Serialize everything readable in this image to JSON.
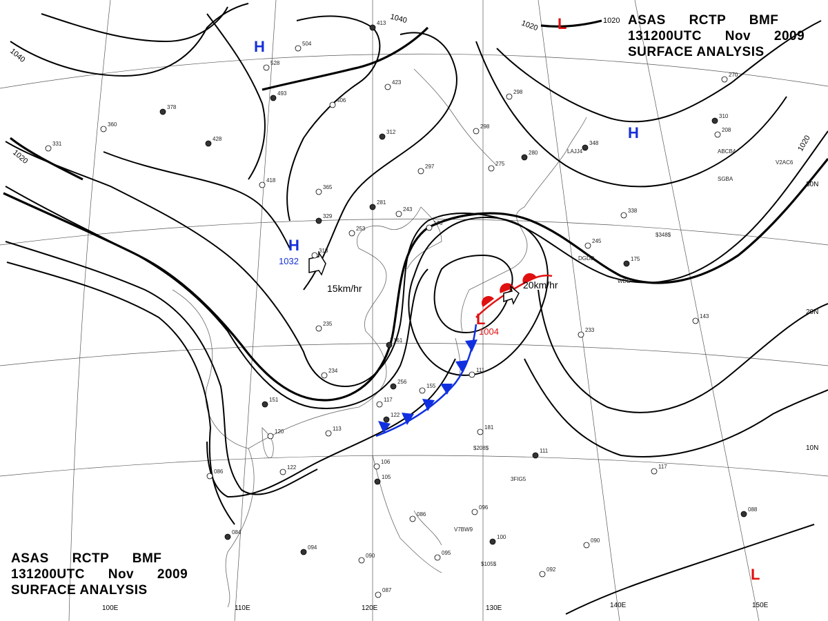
{
  "header": {
    "line1": "ASAS     RCTP     BMF",
    "line2": "131200UTC     Nov     2009",
    "line3": "SURFACE  ANALYSIS"
  },
  "isobar_labels": [
    "1040",
    "1040",
    "1020",
    "1020",
    "1020",
    "1020"
  ],
  "pressure_systems": {
    "high_symbol": "H",
    "low_symbol": "L",
    "high_central": "1032",
    "low_central": "1004",
    "high_color": "#1530d8",
    "low_color": "#e01010"
  },
  "movements": {
    "high": "15km/hr",
    "low": "20km/hr"
  },
  "longitudes": [
    "100E",
    "110E",
    "120E",
    "130E",
    "140E",
    "150E"
  ],
  "latitudes": [
    "30N",
    "20N",
    "10N"
  ],
  "ship_callsigns": [
    "LAJJ4",
    "DGDD",
    "WDD",
    "SGBA",
    "ABCB4",
    "V2AC6",
    "3FIG5",
    "V7BW9",
    "$208$",
    "$348$",
    "$105$"
  ],
  "station_values": [
    "413",
    "504",
    "528",
    "493",
    "423",
    "406",
    "378",
    "360",
    "331",
    "428",
    "418",
    "365",
    "329",
    "313",
    "253",
    "281",
    "243",
    "176",
    "312",
    "298",
    "275",
    "280",
    "297",
    "298",
    "348",
    "338",
    "245",
    "175",
    "233",
    "143",
    "161",
    "234",
    "235",
    "256",
    "155",
    "117",
    "122",
    "113",
    "120",
    "151",
    "181",
    "111",
    "111",
    "117",
    "106",
    "105",
    "086",
    "096",
    "100",
    "095",
    "090",
    "094",
    "087",
    "086",
    "084",
    "122",
    "092",
    "088",
    "090",
    "270",
    "310",
    "208"
  ],
  "colors": {
    "front": "#1030e0",
    "warm": "#e01010",
    "isobar": "#000000",
    "grid": "#555555"
  }
}
